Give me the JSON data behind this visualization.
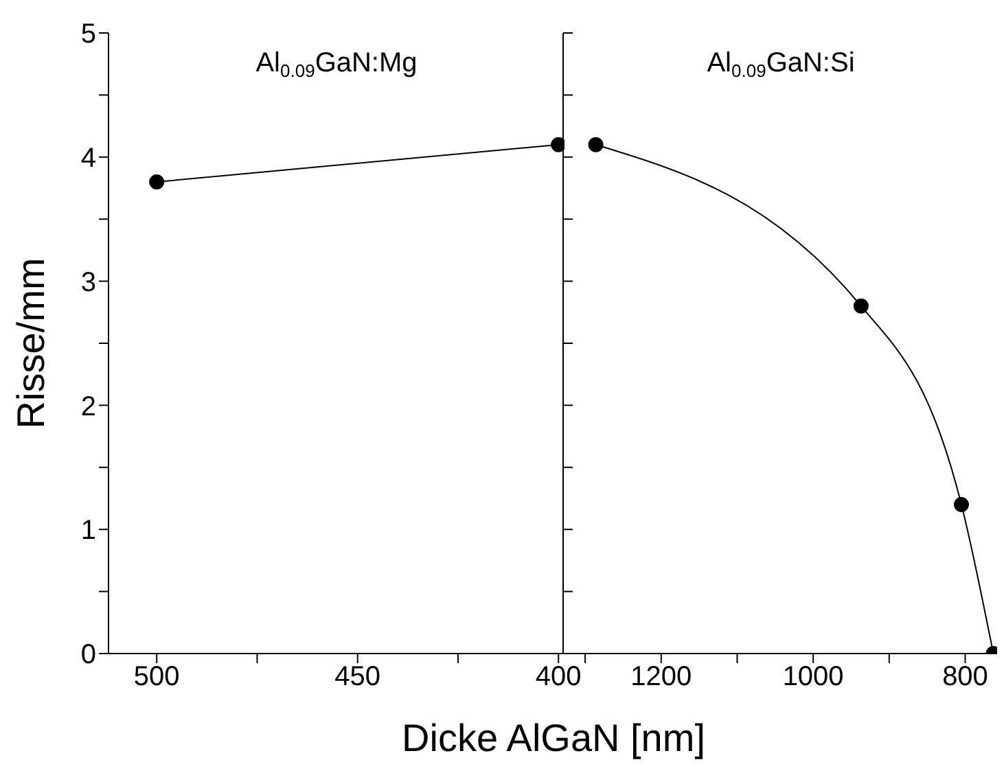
{
  "chart_data": [
    {
      "type": "line",
      "ylabel": "Risse/mm",
      "annotations": [
        "Al$_{0.09}$GaN:Mg"
      ],
      "marker": "circle",
      "series": [
        {
          "color": "#000000",
          "x": [
            500,
            400
          ],
          "values": [
            3.8,
            4.1
          ]
        }
      ],
      "xlim": [
        512,
        398.5
      ],
      "xticks": [
        500,
        {
          "value": 475,
          "label": null
        },
        450,
        {
          "value": 425,
          "label": null
        },
        400
      ],
      "ylim": [
        0,
        5
      ],
      "yticks": [
        0,
        {
          "value": 0.5,
          "label": null
        },
        1,
        {
          "value": 1.5,
          "label": null
        },
        2,
        {
          "value": 2.5,
          "label": null
        },
        3,
        {
          "value": 3.5,
          "label": null
        },
        4,
        {
          "value": 4.5,
          "label": null
        },
        5
      ]
    },
    {
      "type": "line",
      "xlabel": "Dicke AlGaN [nm]",
      "annotations": [
        "Al$_{0.09}$GaN:Si"
      ],
      "marker": "circle",
      "tick_labels": "x",
      "series": [
        {
          "color": "#000000",
          "x": [
            1286,
            937,
            805,
            763
          ],
          "values": [
            4.1,
            2.8,
            1.2,
            0
          ]
        }
      ],
      "xlim": [
        1329,
        758
      ],
      "xticks": [
        {
          "value": 1300,
          "label": null
        },
        1200,
        {
          "value": 1100,
          "label": null
        },
        1000,
        {
          "value": 900,
          "label": null
        },
        800
      ],
      "ylim": [
        0,
        5
      ],
      "yticks": [
        0,
        {
          "value": 0.5,
          "label": null
        },
        1,
        {
          "value": 1.5,
          "label": null
        },
        2,
        {
          "value": 2.5,
          "label": null
        },
        3,
        {
          "value": 3.5,
          "label": null
        },
        4,
        {
          "value": 4.5,
          "label": null
        },
        5
      ]
    }
  ]
}
